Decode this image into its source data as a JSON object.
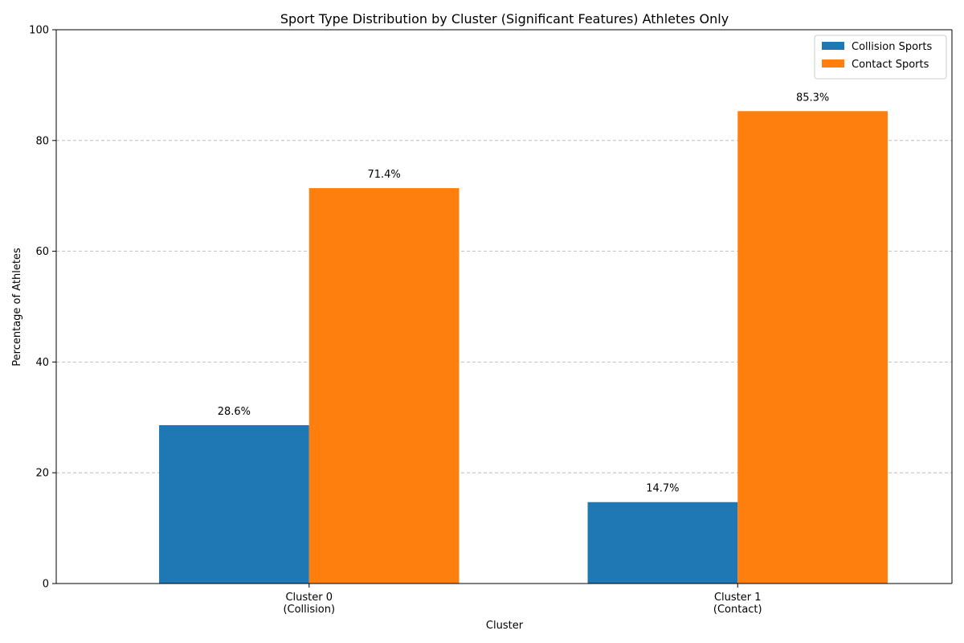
{
  "chart_data": {
    "type": "bar",
    "title": "Sport Type Distribution by Cluster (Significant Features) Athletes Only",
    "xlabel": "Cluster",
    "ylabel": "Percentage of Athletes",
    "categories": [
      [
        "Cluster 0",
        "(Collision)"
      ],
      [
        "Cluster 1",
        "(Contact)"
      ]
    ],
    "series": [
      {
        "name": "Collision Sports",
        "color": "#1f77b4",
        "values": [
          28.6,
          14.7
        ],
        "labels": [
          "28.6%",
          "14.7%"
        ]
      },
      {
        "name": "Contact Sports",
        "color": "#ff7f0e",
        "values": [
          71.4,
          85.3
        ],
        "labels": [
          "71.4%",
          "85.3%"
        ]
      }
    ],
    "ylim": [
      0,
      100
    ],
    "yticks": [
      0,
      20,
      40,
      60,
      80,
      100
    ],
    "grid": "y-dashed",
    "legend_position": "top-right"
  }
}
